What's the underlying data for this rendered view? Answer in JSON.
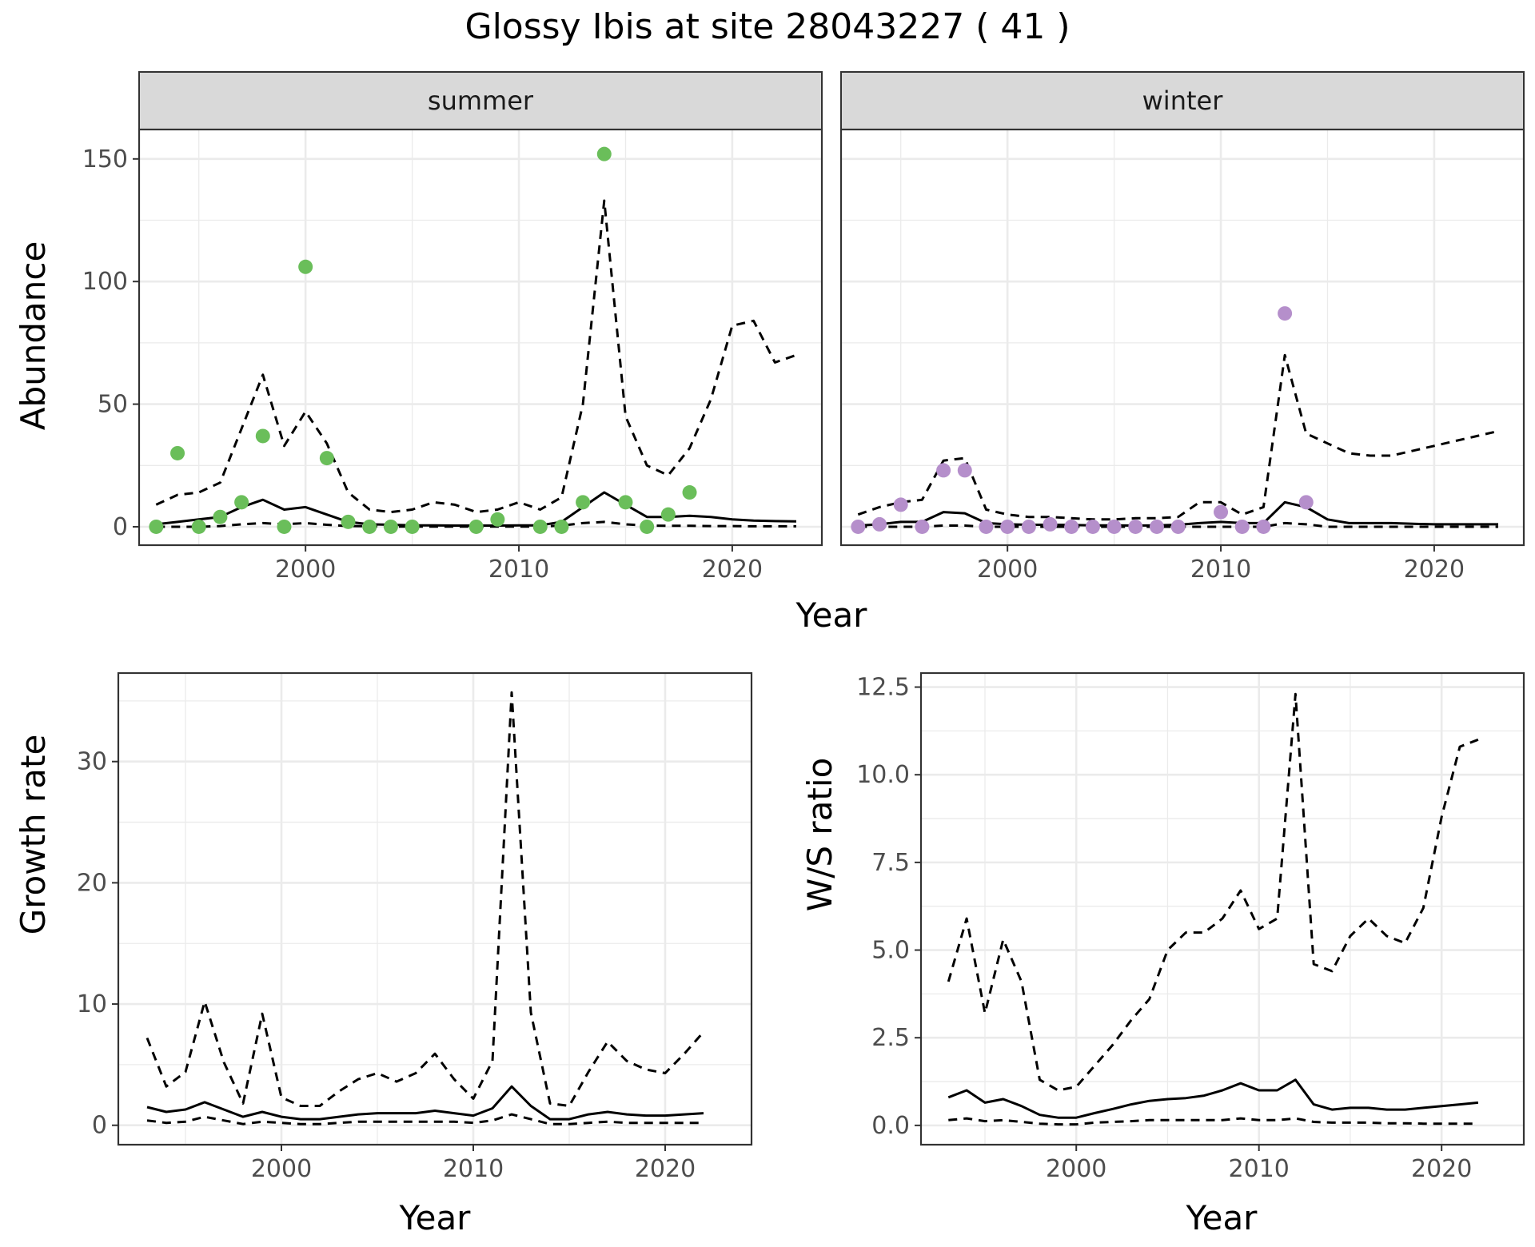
{
  "title": "Glossy Ibis at site 28043227 ( 41 )",
  "chart_data": [
    {
      "type": "line",
      "facet": "summer",
      "xlabel": "",
      "ylabel": "Abundance",
      "xlim": [
        1992.2,
        2024.2
      ],
      "ylim": [
        -7.5,
        162
      ],
      "xticks": [
        2000,
        2010,
        2020
      ],
      "yticks": [
        0,
        50,
        100,
        150
      ],
      "grid": true,
      "point_color": "#6ABE5A",
      "points": {
        "x": [
          1993,
          1994,
          1995,
          1996,
          1997,
          1998,
          1999,
          2000,
          2001,
          2002,
          2003,
          2004,
          2005,
          2008,
          2009,
          2011,
          2012,
          2013,
          2014,
          2015,
          2016,
          2017,
          2018
        ],
        "y": [
          0,
          30,
          0,
          4,
          10,
          37,
          0,
          106,
          28,
          2,
          0,
          0,
          0,
          0,
          3,
          0,
          0,
          10,
          152,
          10,
          0,
          5,
          14
        ]
      },
      "series": [
        {
          "style": "solid",
          "x": [
            1993,
            1994,
            1995,
            1996,
            1997,
            1998,
            1999,
            2000,
            2001,
            2002,
            2003,
            2004,
            2005,
            2006,
            2007,
            2008,
            2009,
            2010,
            2011,
            2012,
            2013,
            2014,
            2015,
            2016,
            2017,
            2018,
            2019,
            2020,
            2021,
            2022,
            2023
          ],
          "y": [
            1,
            2,
            3,
            4,
            8,
            11,
            7,
            8,
            5,
            2,
            1,
            0.8,
            0.6,
            0.6,
            0.5,
            0.5,
            0.5,
            0.6,
            0.6,
            2,
            8,
            14,
            9,
            4,
            4,
            4.5,
            4,
            3,
            2.5,
            2.3,
            2.2
          ]
        },
        {
          "style": "dashed",
          "x": [
            1993,
            1994,
            1995,
            1996,
            1997,
            1998,
            1999,
            2000,
            2001,
            2002,
            2003,
            2004,
            2005,
            2006,
            2007,
            2008,
            2009,
            2010,
            2011,
            2012,
            2013,
            2014,
            2015,
            2016,
            2017,
            2018,
            2019,
            2020,
            2021,
            2022,
            2023
          ],
          "y": [
            9,
            13,
            14,
            18,
            40,
            62,
            33,
            47,
            34,
            14,
            7,
            6,
            7,
            10,
            9,
            6,
            7,
            10,
            7,
            12,
            50,
            133,
            45,
            25,
            21,
            32,
            52,
            82,
            84,
            67,
            70
          ]
        },
        {
          "style": "dashed",
          "x": [
            1993,
            1994,
            1995,
            1996,
            1997,
            1998,
            1999,
            2000,
            2001,
            2002,
            2003,
            2004,
            2005,
            2006,
            2007,
            2008,
            2009,
            2010,
            2011,
            2012,
            2013,
            2014,
            2015,
            2016,
            2017,
            2018,
            2019,
            2020,
            2021,
            2022,
            2023
          ],
          "y": [
            0,
            0,
            0,
            0.3,
            1,
            1.5,
            1,
            1.5,
            0.8,
            0.3,
            0.2,
            0.1,
            0.1,
            0.1,
            0.1,
            0.1,
            0.1,
            0.1,
            0.1,
            0.5,
            1.5,
            2,
            1,
            0.5,
            0.4,
            0.4,
            0.3,
            0.3,
            0.2,
            0.2,
            0.2
          ]
        }
      ]
    },
    {
      "type": "line",
      "facet": "winter",
      "xlabel": "",
      "ylabel": "",
      "xlim": [
        1992.2,
        2024.2
      ],
      "ylim": [
        -7.5,
        162
      ],
      "xticks": [
        2000,
        2010,
        2020
      ],
      "yticks": [
        0,
        50,
        100,
        150
      ],
      "grid": true,
      "point_color": "#B58FCB",
      "points": {
        "x": [
          1993,
          1994,
          1995,
          1996,
          1997,
          1998,
          1999,
          2000,
          2001,
          2002,
          2003,
          2004,
          2005,
          2006,
          2007,
          2008,
          2010,
          2011,
          2012,
          2013,
          2014
        ],
        "y": [
          0,
          1,
          9,
          0,
          23,
          23,
          0,
          0,
          0,
          1,
          0,
          0,
          0,
          0,
          0,
          0,
          6,
          0,
          0,
          87,
          10
        ]
      },
      "series": [
        {
          "style": "solid",
          "x": [
            1993,
            1994,
            1995,
            1996,
            1997,
            1998,
            1999,
            2000,
            2001,
            2002,
            2003,
            2004,
            2005,
            2006,
            2007,
            2008,
            2009,
            2010,
            2011,
            2012,
            2013,
            2014,
            2015,
            2016,
            2017,
            2018,
            2019,
            2020,
            2021,
            2022,
            2023
          ],
          "y": [
            0.5,
            1,
            2,
            2,
            6,
            5.5,
            1.5,
            1,
            0.8,
            0.8,
            0.7,
            0.6,
            0.6,
            0.5,
            0.6,
            0.8,
            1.5,
            2,
            1.5,
            1.5,
            10,
            8,
            3,
            1.5,
            1.5,
            1.5,
            1.2,
            1,
            1,
            1,
            1
          ]
        },
        {
          "style": "dashed",
          "x": [
            1993,
            1994,
            1995,
            1996,
            1997,
            1998,
            1999,
            2000,
            2001,
            2002,
            2003,
            2004,
            2005,
            2006,
            2007,
            2008,
            2009,
            2010,
            2011,
            2012,
            2013,
            2014,
            2015,
            2016,
            2017,
            2018,
            2019,
            2020,
            2021,
            2022,
            2023
          ],
          "y": [
            5,
            8,
            10,
            11,
            27,
            28,
            7,
            5,
            4,
            4,
            3.5,
            3,
            3,
            3.5,
            3.5,
            4,
            10,
            10,
            5,
            8,
            70,
            38,
            34,
            30,
            29,
            29,
            31,
            33,
            35,
            37,
            39
          ]
        },
        {
          "style": "dashed",
          "x": [
            1993,
            1994,
            1995,
            1996,
            1997,
            1998,
            1999,
            2000,
            2001,
            2002,
            2003,
            2004,
            2005,
            2006,
            2007,
            2008,
            2009,
            2010,
            2011,
            2012,
            2013,
            2014,
            2015,
            2016,
            2017,
            2018,
            2019,
            2020,
            2021,
            2022,
            2023
          ],
          "y": [
            0,
            0,
            0,
            0,
            0.5,
            0.5,
            0,
            0,
            0,
            0,
            0,
            0,
            0,
            0,
            0,
            0,
            0,
            0,
            0,
            0,
            1.5,
            1,
            0,
            0,
            0,
            0,
            0,
            0,
            0,
            0,
            0
          ]
        }
      ]
    },
    {
      "type": "line",
      "xlabel": "Year",
      "ylabel": "Growth rate",
      "xlim": [
        1991.5,
        2024.5
      ],
      "ylim": [
        -1.6,
        37.3
      ],
      "xticks": [
        2000,
        2010,
        2020
      ],
      "yticks": [
        0,
        10,
        20,
        30
      ],
      "grid": true,
      "series": [
        {
          "style": "solid",
          "x": [
            1993,
            1994,
            1995,
            1996,
            1997,
            1998,
            1999,
            2000,
            2001,
            2002,
            2003,
            2004,
            2005,
            2006,
            2007,
            2008,
            2009,
            2010,
            2011,
            2012,
            2013,
            2014,
            2015,
            2016,
            2017,
            2018,
            2019,
            2020,
            2021,
            2022
          ],
          "y": [
            1.5,
            1.1,
            1.3,
            1.9,
            1.3,
            0.7,
            1.1,
            0.7,
            0.5,
            0.5,
            0.7,
            0.9,
            1,
            1,
            1,
            1.2,
            1,
            0.8,
            1.4,
            3.2,
            1.6,
            0.5,
            0.5,
            0.9,
            1.1,
            0.9,
            0.8,
            0.8,
            0.9,
            1
          ]
        },
        {
          "style": "dashed",
          "x": [
            1993,
            1994,
            1995,
            1996,
            1997,
            1998,
            1999,
            2000,
            2001,
            2002,
            2003,
            2004,
            2005,
            2006,
            2007,
            2008,
            2009,
            2010,
            2011,
            2012,
            2013,
            2014,
            2015,
            2016,
            2017,
            2018,
            2019,
            2020,
            2021,
            2022
          ],
          "y": [
            7.2,
            3.2,
            4.4,
            10.2,
            5.2,
            1.8,
            9.2,
            2.3,
            1.6,
            1.6,
            2.8,
            3.8,
            4.3,
            3.6,
            4.3,
            5.9,
            3.8,
            2.2,
            5.3,
            35.7,
            9.3,
            1.8,
            1.6,
            4.4,
            6.9,
            5.3,
            4.6,
            4.3,
            5.9,
            7.7
          ]
        },
        {
          "style": "dashed",
          "x": [
            1993,
            1994,
            1995,
            1996,
            1997,
            1998,
            1999,
            2000,
            2001,
            2002,
            2003,
            2004,
            2005,
            2006,
            2007,
            2008,
            2009,
            2010,
            2011,
            2012,
            2013,
            2014,
            2015,
            2016,
            2017,
            2018,
            2019,
            2020,
            2021,
            2022
          ],
          "y": [
            0.4,
            0.2,
            0.3,
            0.7,
            0.4,
            0.1,
            0.3,
            0.2,
            0.1,
            0.1,
            0.2,
            0.3,
            0.3,
            0.3,
            0.3,
            0.3,
            0.3,
            0.2,
            0.4,
            0.9,
            0.5,
            0.1,
            0.1,
            0.2,
            0.3,
            0.2,
            0.2,
            0.2,
            0.2,
            0.2
          ]
        }
      ]
    },
    {
      "type": "line",
      "xlabel": "Year",
      "ylabel": "W/S ratio",
      "xlim": [
        1991.5,
        2024.5
      ],
      "ylim": [
        -0.55,
        12.9
      ],
      "xticks": [
        2000,
        2010,
        2020
      ],
      "yticks": [
        0.0,
        2.5,
        5.0,
        7.5,
        10.0,
        12.5
      ],
      "ytick_labels": [
        "0.0",
        "2.5",
        "5.0",
        "7.5",
        "10.0",
        "12.5"
      ],
      "grid": true,
      "series": [
        {
          "style": "solid",
          "x": [
            1993,
            1994,
            1995,
            1996,
            1997,
            1998,
            1999,
            2000,
            2001,
            2002,
            2003,
            2004,
            2005,
            2006,
            2007,
            2008,
            2009,
            2010,
            2011,
            2012,
            2013,
            2014,
            2015,
            2016,
            2017,
            2018,
            2019,
            2020,
            2021,
            2022
          ],
          "y": [
            0.8,
            1,
            0.65,
            0.75,
            0.55,
            0.3,
            0.22,
            0.22,
            0.35,
            0.47,
            0.6,
            0.7,
            0.75,
            0.78,
            0.85,
            1,
            1.2,
            1,
            1,
            1.3,
            0.6,
            0.45,
            0.5,
            0.5,
            0.45,
            0.45,
            0.5,
            0.55,
            0.6,
            0.65
          ]
        },
        {
          "style": "dashed",
          "x": [
            1993,
            1994,
            1995,
            1996,
            1997,
            1998,
            1999,
            2000,
            2001,
            2002,
            2003,
            2004,
            2005,
            2006,
            2007,
            2008,
            2009,
            2010,
            2011,
            2012,
            2013,
            2014,
            2015,
            2016,
            2017,
            2018,
            2019,
            2020,
            2021,
            2022
          ],
          "y": [
            4.1,
            5.9,
            3.2,
            5.3,
            4.1,
            1.3,
            1,
            1.1,
            1.7,
            2.3,
            3,
            3.6,
            5,
            5.5,
            5.5,
            5.9,
            6.7,
            5.6,
            5.9,
            12.3,
            4.6,
            4.4,
            5.4,
            5.9,
            5.4,
            5.2,
            6.2,
            8.8,
            10.8,
            11
          ]
        },
        {
          "style": "dashed",
          "x": [
            1993,
            1994,
            1995,
            1996,
            1997,
            1998,
            1999,
            2000,
            2001,
            2002,
            2003,
            2004,
            2005,
            2006,
            2007,
            2008,
            2009,
            2010,
            2011,
            2012,
            2013,
            2014,
            2015,
            2016,
            2017,
            2018,
            2019,
            2020,
            2021,
            2022
          ],
          "y": [
            0.15,
            0.2,
            0.12,
            0.15,
            0.1,
            0.05,
            0.03,
            0.03,
            0.08,
            0.1,
            0.12,
            0.15,
            0.15,
            0.15,
            0.15,
            0.15,
            0.2,
            0.15,
            0.15,
            0.2,
            0.1,
            0.08,
            0.08,
            0.08,
            0.06,
            0.06,
            0.05,
            0.05,
            0.05,
            0.05
          ]
        }
      ]
    }
  ]
}
